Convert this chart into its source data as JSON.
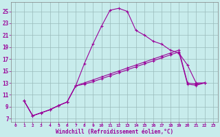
{
  "xlabel": "Windchill (Refroidissement éolien,°C)",
  "bg_color": "#c8ecec",
  "grid_color": "#9ababa",
  "line_color": "#990099",
  "xlim": [
    -0.5,
    23.5
  ],
  "ylim": [
    6.5,
    26.5
  ],
  "yticks": [
    7,
    9,
    11,
    13,
    15,
    17,
    19,
    21,
    23,
    25
  ],
  "xticks": [
    0,
    1,
    2,
    3,
    4,
    5,
    6,
    7,
    8,
    9,
    10,
    11,
    12,
    13,
    14,
    15,
    16,
    17,
    18,
    19,
    20,
    21,
    22,
    23
  ],
  "line1_x": [
    1,
    2,
    3,
    4,
    5,
    6,
    7,
    8,
    9,
    10,
    11,
    12,
    13,
    14,
    15,
    16,
    17,
    18,
    19,
    20,
    21,
    22
  ],
  "line1_y": [
    10,
    7.5,
    8,
    8.5,
    9.2,
    9.8,
    12.5,
    16.2,
    19.5,
    22.5,
    25.2,
    25.5,
    25.0,
    21.8,
    21.0,
    20.0,
    19.5,
    18.5,
    18.0,
    16.0,
    13.0,
    13.0
  ],
  "line2_x": [
    1,
    2,
    3,
    4,
    5,
    6,
    7,
    8,
    9,
    10,
    11,
    12,
    13,
    14,
    15,
    16,
    17,
    18,
    19,
    20,
    21,
    22
  ],
  "line2_y": [
    10,
    7.5,
    8,
    8.5,
    9.2,
    9.8,
    12.5,
    13.0,
    13.5,
    14.0,
    14.5,
    15.0,
    15.5,
    16.0,
    16.5,
    17.0,
    17.5,
    18.0,
    18.5,
    13.0,
    12.8,
    13.0
  ],
  "line3_x": [
    1,
    2,
    3,
    4,
    5,
    6,
    7,
    8,
    9,
    10,
    11,
    12,
    13,
    14,
    15,
    16,
    17,
    18,
    19,
    20,
    21,
    22
  ],
  "line3_y": [
    10,
    7.5,
    8,
    8.5,
    9.2,
    9.8,
    12.5,
    12.8,
    13.2,
    13.7,
    14.2,
    14.7,
    15.2,
    15.7,
    16.2,
    16.7,
    17.2,
    17.7,
    18.2,
    12.8,
    12.6,
    13.0
  ]
}
